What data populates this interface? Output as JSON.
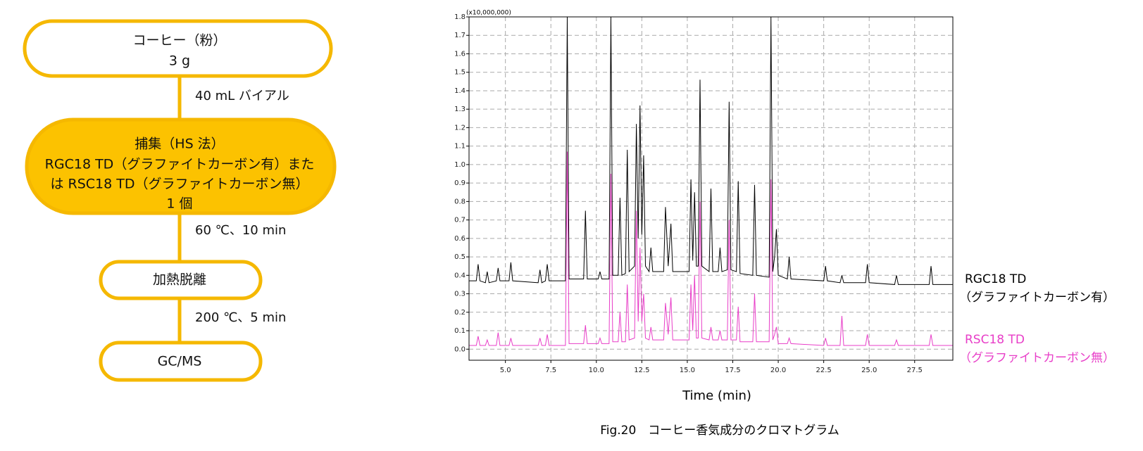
{
  "diagram": {
    "nodes": [
      {
        "lines": [
          "コーヒー（粉）",
          "3 g"
        ]
      },
      {
        "lines": [
          "捕集（HS 法）",
          "RGC18 TD（グラファイトカーボン有）また",
          "は RSC18 TD（グラファイトカーボン無）",
          "1 個"
        ]
      },
      {
        "lines": [
          "加熱脱離"
        ]
      },
      {
        "lines": [
          "GC/MS"
        ]
      }
    ],
    "edges": [
      {
        "label": "40 mL バイアル"
      },
      {
        "label": "60 ℃、10 min"
      },
      {
        "label": "200 ℃、5 min"
      }
    ]
  },
  "chart_data": {
    "type": "line",
    "x_label": "Time (min)",
    "y_unit": "(x10,000,000)",
    "caption": "Fig.20　コーヒー香気成分のクロマトグラム",
    "grid": true,
    "xlim": [
      3,
      29.6
    ],
    "ylim": [
      -0.06,
      1.8
    ],
    "xticks": [
      {
        "value": 5,
        "label": "5.0"
      },
      7.5,
      {
        "value": 10,
        "label": "10.0"
      },
      12.5,
      {
        "value": 15,
        "label": "15.0"
      },
      17.5,
      {
        "value": 20,
        "label": "20.0"
      },
      22.5,
      {
        "value": 25,
        "label": "25.0"
      },
      27.5
    ],
    "yticks": [
      {
        "value": 0,
        "label": "0.0"
      },
      0.1,
      0.2,
      0.3,
      0.4,
      0.5,
      0.6,
      0.7,
      0.8,
      0.9,
      {
        "value": 1,
        "label": "1.0"
      },
      1.1,
      1.2,
      1.3,
      1.4,
      1.5,
      1.6,
      1.7,
      1.8
    ],
    "x": [
      3.0,
      3.4,
      3.5,
      3.6,
      3.9,
      4.0,
      4.1,
      4.5,
      4.6,
      4.7,
      5.2,
      5.3,
      5.4,
      6.8,
      6.9,
      7.0,
      7.2,
      7.3,
      7.4,
      8.3,
      8.4,
      8.5,
      9.3,
      9.4,
      9.5,
      10.1,
      10.2,
      10.3,
      10.7,
      10.8,
      10.9,
      11.2,
      11.3,
      11.4,
      11.6,
      11.7,
      11.8,
      12.1,
      12.2,
      12.3,
      12.4,
      12.5,
      12.6,
      12.7,
      12.9,
      13.0,
      13.1,
      13.7,
      13.8,
      13.95,
      14.1,
      14.2,
      15.1,
      15.2,
      15.3,
      15.4,
      15.5,
      15.6,
      15.7,
      15.8,
      16.2,
      16.3,
      16.4,
      16.7,
      16.8,
      16.9,
      17.2,
      17.3,
      17.4,
      17.7,
      17.8,
      17.9,
      18.6,
      18.7,
      18.8,
      19.5,
      19.6,
      19.7,
      19.8,
      19.9,
      20.0,
      20.5,
      20.6,
      20.7,
      22.5,
      22.6,
      22.7,
      23.4,
      23.5,
      23.6,
      24.8,
      24.9,
      25.0,
      26.4,
      26.5,
      26.6,
      28.3,
      28.4,
      28.5,
      29.7
    ],
    "series": [
      {
        "name": "RGC18 TD",
        "note": "（グラファイトカーボン有）",
        "color": "#000000",
        "values": [
          0.37,
          0.37,
          0.46,
          0.37,
          0.36,
          0.42,
          0.36,
          0.37,
          0.44,
          0.37,
          0.37,
          0.47,
          0.37,
          0.36,
          0.43,
          0.36,
          0.37,
          0.46,
          0.37,
          0.37,
          1.8,
          0.38,
          0.38,
          0.75,
          0.38,
          0.38,
          0.42,
          0.38,
          0.38,
          1.8,
          0.4,
          0.4,
          0.82,
          0.4,
          0.41,
          1.08,
          0.42,
          0.45,
          1.22,
          0.6,
          1.32,
          0.62,
          1.05,
          0.45,
          0.42,
          0.55,
          0.42,
          0.42,
          0.77,
          0.45,
          0.68,
          0.42,
          0.42,
          0.92,
          0.48,
          0.85,
          0.45,
          0.45,
          1.46,
          0.45,
          0.42,
          0.87,
          0.42,
          0.42,
          0.55,
          0.42,
          0.43,
          1.34,
          0.43,
          0.42,
          0.91,
          0.41,
          0.4,
          0.89,
          0.4,
          0.39,
          1.8,
          0.42,
          0.5,
          0.65,
          0.4,
          0.38,
          0.5,
          0.38,
          0.37,
          0.45,
          0.37,
          0.36,
          0.4,
          0.36,
          0.36,
          0.46,
          0.36,
          0.35,
          0.4,
          0.35,
          0.35,
          0.45,
          0.35,
          0.35
        ]
      },
      {
        "name": "RSC18 TD",
        "note": "（グラファイトカーボン無）",
        "color": "#e83ec8",
        "values": [
          0.02,
          0.02,
          0.07,
          0.02,
          0.02,
          0.05,
          0.02,
          0.02,
          0.09,
          0.02,
          0.02,
          0.06,
          0.02,
          0.02,
          0.06,
          0.02,
          0.02,
          0.08,
          0.02,
          0.02,
          1.07,
          0.03,
          0.03,
          0.13,
          0.03,
          0.03,
          0.06,
          0.03,
          0.03,
          0.95,
          0.04,
          0.04,
          0.2,
          0.04,
          0.04,
          0.35,
          0.05,
          0.06,
          0.75,
          0.15,
          0.55,
          0.15,
          0.3,
          0.06,
          0.05,
          0.12,
          0.05,
          0.05,
          0.25,
          0.08,
          0.28,
          0.05,
          0.05,
          0.35,
          0.1,
          0.4,
          0.06,
          0.06,
          0.8,
          0.06,
          0.05,
          0.12,
          0.05,
          0.05,
          0.1,
          0.05,
          0.05,
          0.7,
          0.05,
          0.05,
          0.23,
          0.04,
          0.04,
          0.3,
          0.04,
          0.04,
          0.92,
          0.05,
          0.08,
          0.12,
          0.03,
          0.03,
          0.06,
          0.03,
          0.02,
          0.06,
          0.02,
          0.02,
          0.18,
          0.02,
          0.02,
          0.08,
          0.02,
          0.02,
          0.05,
          0.02,
          0.02,
          0.08,
          0.02,
          0.02
        ]
      }
    ]
  }
}
